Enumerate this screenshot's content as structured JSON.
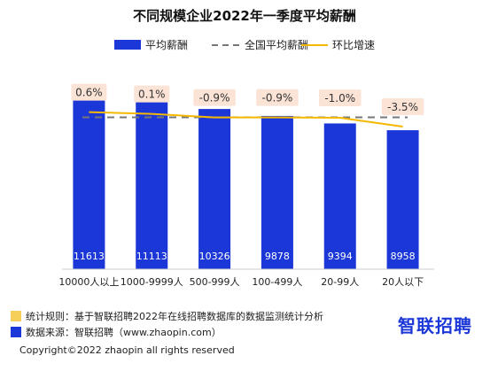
{
  "chart_data": {
    "type": "bar",
    "title": "不同规模企业2022年一季度平均薪酬",
    "categories": [
      "10000人以上",
      "1000-9999人",
      "500-999人",
      "100-499人",
      "20-99人",
      "20人以下"
    ],
    "series": [
      {
        "name": "平均薪酬",
        "type": "bar",
        "values": [
          11613,
          11113,
          10326,
          9878,
          9394,
          8958
        ],
        "color": "#1c37d8"
      },
      {
        "name": "全国平均薪酬",
        "type": "dashed-line",
        "value": 9790,
        "color": "#777777"
      },
      {
        "name": "环比增速",
        "type": "line",
        "values": [
          0.6,
          0.1,
          -0.9,
          -0.9,
          -1.0,
          -3.5
        ],
        "labels": [
          "0.6%",
          "0.1%",
          "-0.9%",
          "-0.9%",
          "-1.0%",
          "-3.5%"
        ],
        "color": "#f5b800"
      }
    ],
    "value_labels": [
      "11613",
      "11113",
      "10326",
      "9878",
      "9394",
      "8958"
    ],
    "ylim": [
      0,
      12500
    ],
    "grid": false,
    "legend": "top"
  },
  "footer": {
    "rule_text": "统计规则：基于智联招聘2022年在线招聘数据库的数据监测统计分析",
    "source_text": "数据来源：智联招聘（www.zhaopin.com）",
    "brand": "智联招聘",
    "copyright": "Copyright©2022 zhaopin all rights reserved",
    "rule_color": "#f5cf5a",
    "source_color": "#1c37d8"
  }
}
